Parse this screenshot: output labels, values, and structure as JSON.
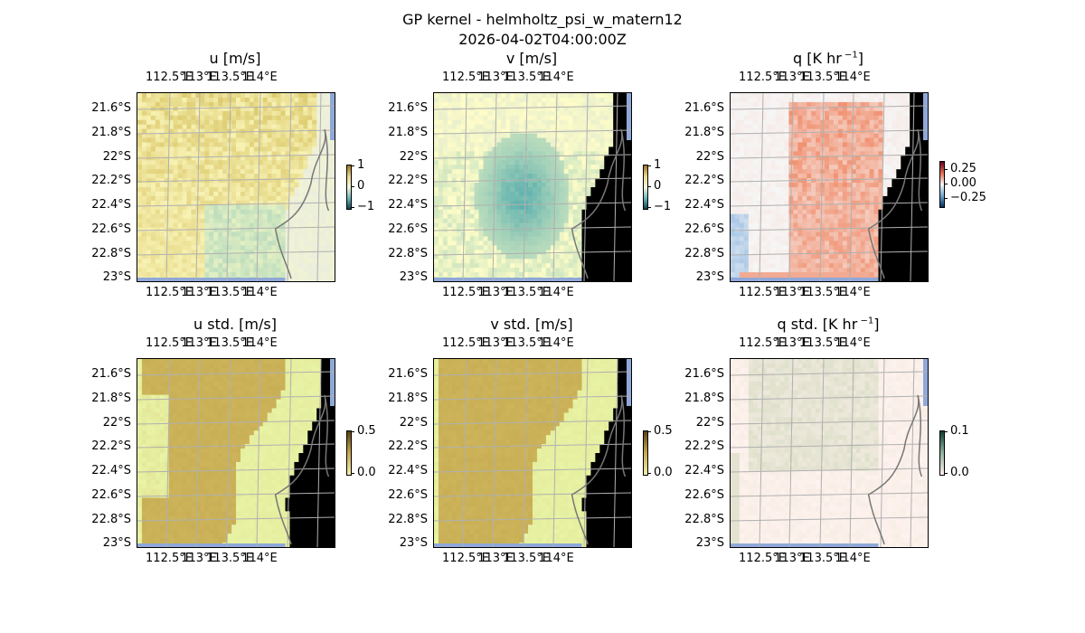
{
  "figure": {
    "title_line1": "GP kernel - helmholtz_psi_w_matern12",
    "title_line2": "2026-04-02T04:00:00Z"
  },
  "axes": {
    "lon_ticks": [
      "112.5°E",
      "113°E",
      "113.5°E",
      "114°E"
    ],
    "lat_ticks": [
      "21.6°S",
      "21.8°S",
      "22°S",
      "22.2°S",
      "22.4°S",
      "22.6°S",
      "22.8°S",
      "23°S"
    ]
  },
  "chart_data": [
    {
      "type": "heatmap",
      "title": "u [m/s]",
      "cmap": "diverging brown-yellow-teal",
      "clim": [
        -1,
        1
      ],
      "colorbar_ticks": [
        "1",
        "0",
        "−1"
      ]
    },
    {
      "type": "heatmap",
      "title": "v [m/s]",
      "cmap": "diverging brown-yellow-teal",
      "clim": [
        -1,
        1
      ],
      "colorbar_ticks": [
        "1",
        "0",
        "−1"
      ]
    },
    {
      "type": "heatmap",
      "title": "q [K hr",
      "title_exp": "−1",
      "title_end": "]",
      "cmap": "diverging blue-white-red",
      "clim": [
        -0.25,
        0.25
      ],
      "colorbar_ticks": [
        "0.25",
        "0.00",
        "−0.25"
      ]
    },
    {
      "type": "heatmap",
      "title": "u std. [m/s]",
      "cmap": "sequential yellow-olive",
      "clim": [
        0,
        0.5
      ],
      "colorbar_ticks": [
        "0.5",
        "0.0"
      ]
    },
    {
      "type": "heatmap",
      "title": "v std. [m/s]",
      "cmap": "sequential yellow-olive",
      "clim": [
        0,
        0.5
      ],
      "colorbar_ticks": [
        "0.5",
        "0.0"
      ]
    },
    {
      "type": "heatmap",
      "title": "q std. [K hr",
      "title_exp": "−1",
      "title_end": "]",
      "cmap": "sequential pink-green",
      "clim": [
        0,
        0.1
      ],
      "colorbar_ticks": [
        "0.1",
        "0.0"
      ]
    }
  ],
  "colors": {
    "land_bg": "#fffdc8",
    "coast": "#777777",
    "grid": "#b0b0b0",
    "sea_edge": "#8fa8d8"
  }
}
